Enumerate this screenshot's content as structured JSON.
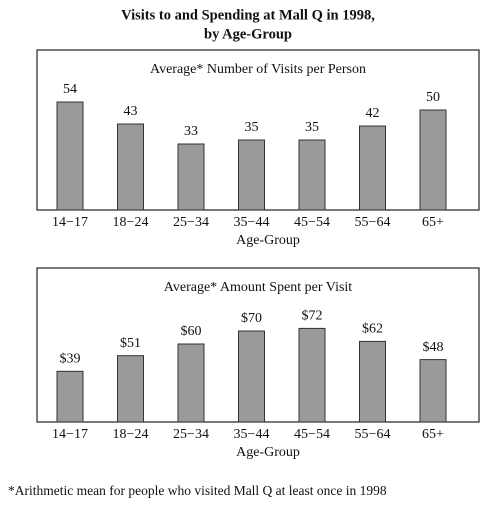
{
  "title": [
    "Visits to and Spending at Mall Q in 1998,",
    "by Age-Group"
  ],
  "footnote": "*Arithmetic mean for people who visited Mall Q at least once in 1998",
  "chart_data": [
    {
      "type": "bar",
      "title": "Average* Number of Visits per Person",
      "categories": [
        "14−17",
        "18−24",
        "25−34",
        "35−44",
        "45−54",
        "55−64",
        "65+"
      ],
      "values": [
        54,
        43,
        33,
        35,
        35,
        42,
        50
      ],
      "xlabel": "Age-Group",
      "color": "#9a9a9a"
    },
    {
      "type": "bar",
      "title": "Average* Amount Spent per Visit",
      "categories": [
        "14−17",
        "18−24",
        "25−34",
        "35−44",
        "45−54",
        "55−64",
        "65+"
      ],
      "values": [
        39,
        51,
        60,
        70,
        72,
        62,
        48
      ],
      "value_labels": [
        "$39",
        "$51",
        "$60",
        "$70",
        "$72",
        "$62",
        "$48"
      ],
      "xlabel": "Age-Group",
      "color": "#9a9a9a"
    }
  ]
}
